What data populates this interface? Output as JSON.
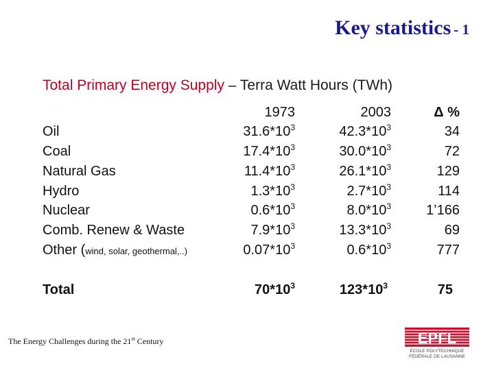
{
  "title": {
    "main": "Key statistics",
    "suffix": "- 1"
  },
  "subtitle": {
    "highlight": "Total Primary Energy Supply",
    "rest": " – Terra Watt Hours (TWh)"
  },
  "table": {
    "headers": [
      "1973",
      "2003",
      "Δ %"
    ],
    "rows": [
      {
        "label": "Oil",
        "v1973": "31.6",
        "v2003": "42.3",
        "delta": "34"
      },
      {
        "label": "Coal",
        "v1973": "17.4",
        "v2003": "30.0",
        "delta": "72"
      },
      {
        "label": "Natural Gas",
        "v1973": "11.4",
        "v2003": "26.1",
        "delta": "129"
      },
      {
        "label": "Hydro",
        "v1973": "1.3",
        "v2003": "2.7",
        "delta": "114"
      },
      {
        "label": "Nuclear",
        "v1973": "0.6",
        "v2003": "8.0",
        "delta": "1’166"
      },
      {
        "label": "Comb. Renew & Waste",
        "v1973": "7.9",
        "v2003": "13.3",
        "delta": "69"
      },
      {
        "label": "Other (",
        "label_small": "wind, solar, geothermal,..)",
        "v1973": "0.07",
        "v2003": "0.6",
        "delta": "777"
      }
    ],
    "total": {
      "label": "Total",
      "v1973": "70",
      "v2003": "123",
      "delta": "75"
    },
    "multiplier": "*10",
    "exponent": "3"
  },
  "footer": {
    "text": "The Energy Challenges during the 21",
    "sup": "st",
    "tail": " Century"
  },
  "logo": {
    "line1": "EPFL",
    "line2": "ÉCOLE POLYTECHNIQUE",
    "line3": "FÉDÉRALE DE LAUSANNE"
  },
  "colors": {
    "title": "#1a1a8c",
    "highlight": "#c00020",
    "logo": "#c8102e"
  }
}
